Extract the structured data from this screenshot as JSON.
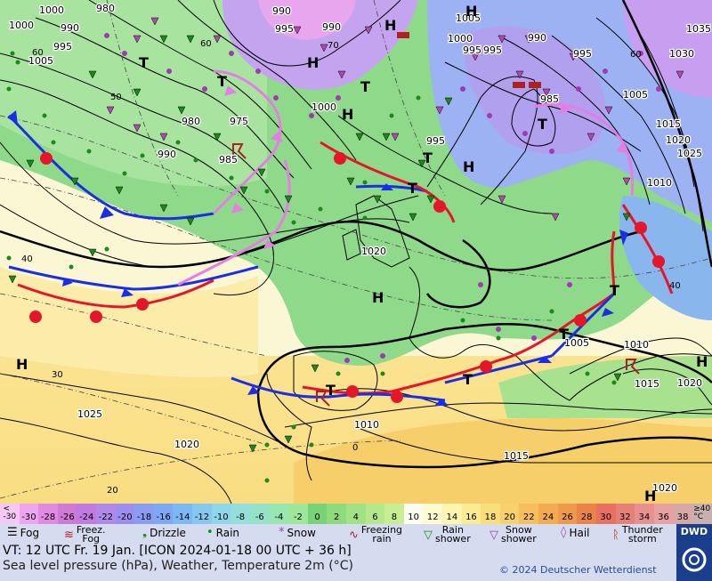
{
  "map": {
    "pressure_labels": [
      "1000",
      "980",
      "1000",
      "990",
      "995",
      "1005",
      "990",
      "995",
      "990",
      "995",
      "1005",
      "995",
      "1000",
      "995",
      "990",
      "1030",
      "1035",
      "980",
      "975",
      "990",
      "985",
      "1000",
      "995",
      "985",
      "1005",
      "1015",
      "1010",
      "1020",
      "1025",
      "1020",
      "1010",
      "1025",
      "1020",
      "1015",
      "1020",
      "1005",
      "1010",
      "1015",
      "1020",
      "1020",
      "1010",
      "1015"
    ],
    "high_low_labels": [
      "T",
      "H",
      "H",
      "T",
      "H",
      "T",
      "T",
      "T",
      "H",
      "T",
      "H",
      "H",
      "H",
      "T",
      "T",
      "T",
      "T",
      "H",
      "H",
      "H",
      "H"
    ],
    "temperature_labels": [
      "60",
      "60",
      "70",
      "50",
      "60",
      "40",
      "40",
      "30",
      "20",
      "0"
    ],
    "colors": {
      "fog_sea": "#fdf6c6",
      "green": "#8fda8a",
      "purple": "#b9a4ea",
      "cold_front": "#1a2ee6",
      "warm_front": "#e6162a",
      "occlusion": "#e67ce6",
      "isobar": "#000000"
    }
  },
  "scale": {
    "labels": [
      "<\n-30",
      "-30",
      "-28",
      "-26",
      "-24",
      "-22",
      "-20",
      "-18",
      "-16",
      "-14",
      "-12",
      "-10",
      "-8",
      "-6",
      "-4",
      "-2",
      "0",
      "2",
      "4",
      "6",
      "8",
      "10",
      "12",
      "14",
      "16",
      "18",
      "20",
      "22",
      "24",
      "26",
      "28",
      "30",
      "32",
      "34",
      "36",
      "38",
      "≥40\n°C"
    ],
    "colors": [
      "#f5c8f5",
      "#eda6ed",
      "#e08ae0",
      "#d07ad8",
      "#c07ae0",
      "#b08ae8",
      "#9b8ef0",
      "#8c9cf2",
      "#7ea8f4",
      "#7cb8f4",
      "#86c8f0",
      "#8ed6ea",
      "#94dedc",
      "#94e2c8",
      "#98e6b0",
      "#9ee69a",
      "#78d276",
      "#8eda7c",
      "#a2e284",
      "#b4e88a",
      "#c8ee94",
      "#fcfcf0",
      "#fffbd0",
      "#fff5b0",
      "#fdeb92",
      "#f9df7c",
      "#f8d06c",
      "#f6be5c",
      "#f3aa50",
      "#ef9a4a",
      "#ea8446",
      "#e87060",
      "#e8807a",
      "#e89090",
      "#e8a0a0",
      "#d8a8a8",
      "#c8b0b0"
    ]
  },
  "legend": {
    "fog": "Fog",
    "freezing_fog": "Freez.\nFog",
    "drizzle": "Drizzle",
    "rain": "Rain",
    "snow": "Snow",
    "freezing_rain": "Freezing\nrain",
    "rain_shower": "Rain\nshower",
    "snow_shower": "Snow\nshower",
    "hail": "Hail",
    "thunderstorm": "Thunder\nstorm",
    "valid_time": "VT: 12 UTC Fr.  19 Jan. [ICON 2024-01-18  00 UTC + 36 h]",
    "subtitle": "Sea level pressure (hPa), Weather, Temperature 2m (°C)",
    "copyright": "© 2024 Deutscher Wetterdienst",
    "logo": "DWD"
  }
}
